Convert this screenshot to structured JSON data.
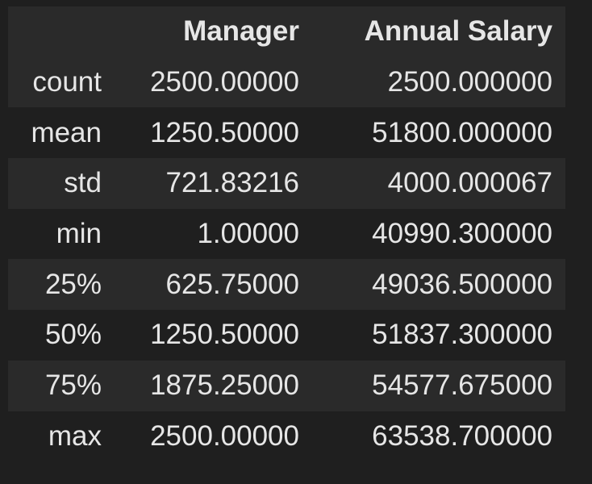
{
  "table": {
    "columns": [
      "",
      "Manager",
      "Annual Salary"
    ],
    "rows": [
      {
        "label": "count",
        "manager": "2500.00000",
        "salary": "2500.000000"
      },
      {
        "label": "mean",
        "manager": "1250.50000",
        "salary": "51800.000000"
      },
      {
        "label": "std",
        "manager": "721.83216",
        "salary": "4000.000067"
      },
      {
        "label": "min",
        "manager": "1.00000",
        "salary": "40990.300000"
      },
      {
        "label": "25%",
        "manager": "625.75000",
        "salary": "49036.500000"
      },
      {
        "label": "50%",
        "manager": "1250.50000",
        "salary": "51837.300000"
      },
      {
        "label": "75%",
        "manager": "1875.25000",
        "salary": "54577.675000"
      },
      {
        "label": "max",
        "manager": "2500.00000",
        "salary": "63538.700000"
      }
    ]
  },
  "colors": {
    "background": "#1f1f1f",
    "stripe": "#2a2a2a",
    "text": "#e6e6e6"
  }
}
